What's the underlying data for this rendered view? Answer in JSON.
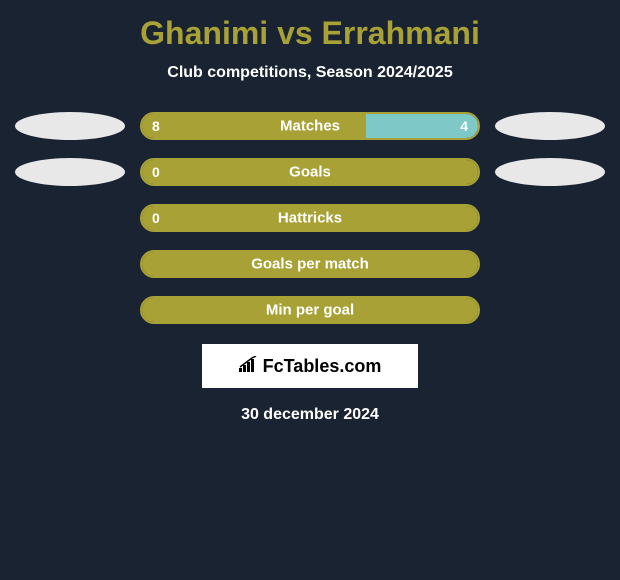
{
  "header": {
    "title": "Ghanimi vs Errahmani",
    "subtitle": "Club competitions, Season 2024/2025"
  },
  "colors": {
    "background": "#1a2332",
    "accent": "#a8a135",
    "player2_bar": "#7ec8c8",
    "ellipse": "#e8e8e8",
    "text": "#ffffff"
  },
  "stats": [
    {
      "label": "Matches",
      "left_value": "8",
      "right_value": "4",
      "left_pct": 66.67,
      "right_pct": 33.33,
      "show_left_ellipse": true,
      "show_right_ellipse": true
    },
    {
      "label": "Goals",
      "left_value": "0",
      "right_value": "",
      "left_pct": 100,
      "right_pct": 0,
      "show_left_ellipse": true,
      "show_right_ellipse": true
    },
    {
      "label": "Hattricks",
      "left_value": "0",
      "right_value": "",
      "left_pct": 100,
      "right_pct": 0,
      "show_left_ellipse": false,
      "show_right_ellipse": false
    },
    {
      "label": "Goals per match",
      "left_value": "",
      "right_value": "",
      "left_pct": 100,
      "right_pct": 0,
      "show_left_ellipse": false,
      "show_right_ellipse": false
    },
    {
      "label": "Min per goal",
      "left_value": "",
      "right_value": "",
      "left_pct": 100,
      "right_pct": 0,
      "show_left_ellipse": false,
      "show_right_ellipse": false
    }
  ],
  "footer": {
    "logo_text": "FcTables.com",
    "date": "30 december 2024"
  }
}
